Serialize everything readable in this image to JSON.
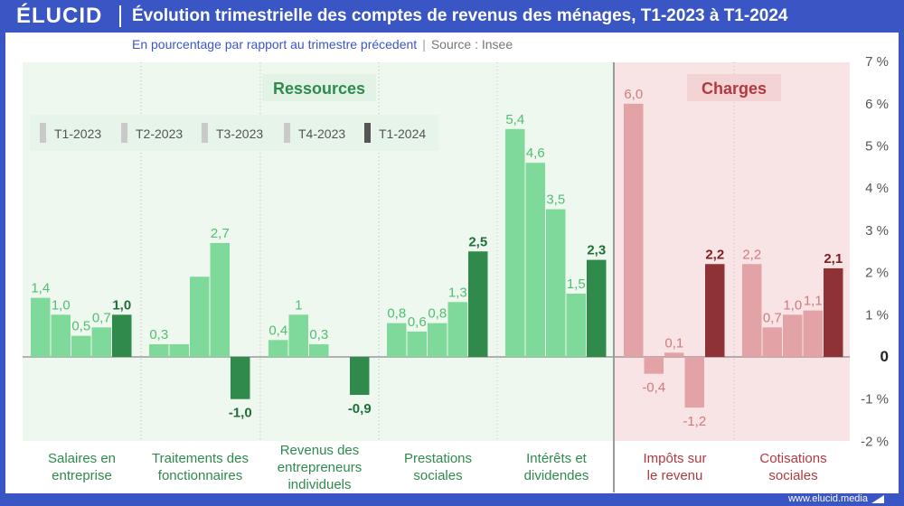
{
  "brand": "ÉLUCID",
  "title": "Évolution trimestrielle des comptes de revenus des ménages, T1-2023 à T1-2024",
  "subtitle": "En pourcentage par rapport au trimestre précedent",
  "source": "Source : Insee",
  "footer": "www.elucid.media",
  "colors": {
    "resources_light": "#7fd99a",
    "resources_dark": "#2f8a4c",
    "charges_light": "#e3a3a6",
    "charges_dark": "#8e3236",
    "resources_bg": "#eef8ef",
    "charges_bg": "#f8e4e4",
    "brand_blue": "#3a56c5"
  },
  "chart_data": {
    "type": "bar",
    "ylim": [
      -2,
      7
    ],
    "yticks": [
      "7 %",
      "6 %",
      "5 %",
      "4 %",
      "3 %",
      "2 %",
      "1 %",
      "0",
      "-1 %",
      "-2 %"
    ],
    "ytick_values": [
      7,
      6,
      5,
      4,
      3,
      2,
      1,
      0,
      -1,
      -2
    ],
    "legend": [
      "T1-2023",
      "T2-2023",
      "T3-2023",
      "T4-2023",
      "T1-2024"
    ],
    "sections": [
      {
        "label": "Ressources",
        "group_range": [
          0,
          4
        ]
      },
      {
        "label": "Charges",
        "group_range": [
          5,
          6
        ]
      }
    ],
    "groups": [
      {
        "name": "Salaires en entreprise",
        "lines": [
          "Salaires en",
          "entreprise"
        ],
        "section": "Ressources",
        "values": [
          1.4,
          1.0,
          0.5,
          0.7,
          1.0
        ],
        "labels": [
          "1,4",
          "1,0",
          "0,5",
          "0,7",
          "1,0"
        ]
      },
      {
        "name": "Traitements des fonctionnaires",
        "lines": [
          "Traitements des",
          "fonctionnaires"
        ],
        "section": "Ressources",
        "values": [
          0.3,
          0.3,
          1.9,
          2.7,
          -1.0
        ],
        "labels": [
          "0,3",
          "",
          "",
          "2,7",
          "-1,0"
        ]
      },
      {
        "name": "Revenus des entrepreneurs individuels",
        "lines": [
          "Revenus des",
          "entrepreneurs",
          "individuels"
        ],
        "section": "Ressources",
        "values": [
          0.4,
          1.0,
          0.3,
          0.0,
          -0.9
        ],
        "labels": [
          "0,4",
          "1",
          "0,3",
          "",
          "-0,9"
        ]
      },
      {
        "name": "Prestations sociales",
        "lines": [
          "Prestations",
          "sociales"
        ],
        "section": "Ressources",
        "values": [
          0.8,
          0.6,
          0.8,
          1.3,
          2.5
        ],
        "labels": [
          "0,8",
          "0,6",
          "0,8",
          "1,3",
          "2,5"
        ]
      },
      {
        "name": "Intérêts et dividendes",
        "lines": [
          "Intérêts et",
          "dividendes"
        ],
        "section": "Ressources",
        "values": [
          5.4,
          4.6,
          3.5,
          1.5,
          2.3
        ],
        "labels": [
          "5,4",
          "4,6",
          "3,5",
          "1,5",
          "2,3"
        ]
      },
      {
        "name": "Impôts sur le revenu",
        "lines": [
          "Impôts sur",
          "le revenu"
        ],
        "section": "Charges",
        "values": [
          6.0,
          -0.4,
          0.1,
          -1.2,
          2.2
        ],
        "labels": [
          "6,0",
          "-0,4",
          "0,1",
          "-1,2",
          "2,2"
        ]
      },
      {
        "name": "Cotisations sociales",
        "lines": [
          "Cotisations",
          "sociales"
        ],
        "section": "Charges",
        "values": [
          2.2,
          0.7,
          1.0,
          1.1,
          2.1
        ],
        "labels": [
          "2,2",
          "0,7",
          "1,0",
          "1,1",
          "2,1"
        ]
      }
    ]
  }
}
